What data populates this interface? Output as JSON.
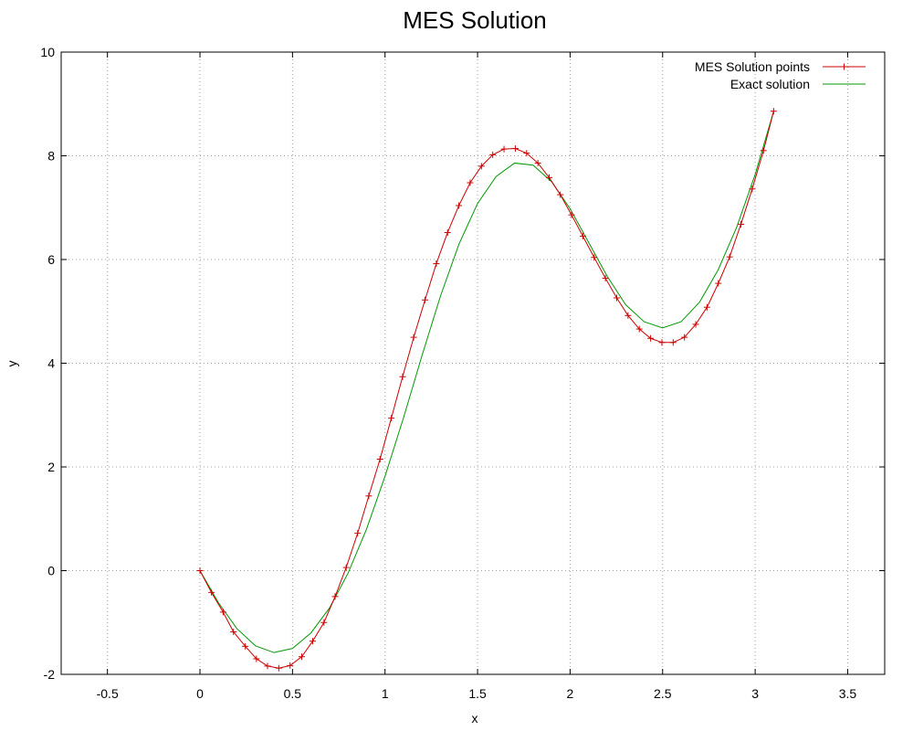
{
  "chart_data": {
    "type": "line",
    "title": "MES Solution",
    "xlabel": "x",
    "ylabel": "y",
    "xlim": [
      -0.75,
      3.7
    ],
    "ylim": [
      -2,
      10
    ],
    "xticks": [
      -0.5,
      0,
      0.5,
      1,
      1.5,
      2,
      2.5,
      3,
      3.5
    ],
    "xtick_labels": [
      "-0.5",
      "0",
      "0.5",
      "1",
      "1.5",
      "2",
      "2.5",
      "3",
      "3.5"
    ],
    "yticks": [
      -2,
      0,
      2,
      4,
      6,
      8,
      10
    ],
    "ytick_labels": [
      "-2",
      "0",
      "2",
      "4",
      "6",
      "8",
      "10"
    ],
    "grid": true,
    "legend_position": "top-right",
    "series": [
      {
        "name": "MES Solution points",
        "color": "#cc0000",
        "marker": "plus",
        "points": [
          [
            0.0,
            0.0
          ],
          [
            0.062,
            -0.42
          ],
          [
            0.125,
            -0.8
          ],
          [
            0.181,
            -1.18
          ],
          [
            0.245,
            -1.46
          ],
          [
            0.305,
            -1.7
          ],
          [
            0.365,
            -1.84
          ],
          [
            0.426,
            -1.88
          ],
          [
            0.487,
            -1.83
          ],
          [
            0.55,
            -1.66
          ],
          [
            0.609,
            -1.36
          ],
          [
            0.67,
            -1.0
          ],
          [
            0.73,
            -0.5
          ],
          [
            0.79,
            0.06
          ],
          [
            0.852,
            0.72
          ],
          [
            0.912,
            1.44
          ],
          [
            0.973,
            2.15
          ],
          [
            1.034,
            2.94
          ],
          [
            1.095,
            3.74
          ],
          [
            1.155,
            4.5
          ],
          [
            1.216,
            5.22
          ],
          [
            1.277,
            5.92
          ],
          [
            1.338,
            6.52
          ],
          [
            1.399,
            7.04
          ],
          [
            1.46,
            7.48
          ],
          [
            1.521,
            7.8
          ],
          [
            1.582,
            8.02
          ],
          [
            1.643,
            8.13
          ],
          [
            1.704,
            8.14
          ],
          [
            1.765,
            8.05
          ],
          [
            1.826,
            7.86
          ],
          [
            1.887,
            7.58
          ],
          [
            1.947,
            7.25
          ],
          [
            2.008,
            6.86
          ],
          [
            2.069,
            6.45
          ],
          [
            2.13,
            6.04
          ],
          [
            2.191,
            5.64
          ],
          [
            2.252,
            5.26
          ],
          [
            2.313,
            4.92
          ],
          [
            2.374,
            4.66
          ],
          [
            2.435,
            4.48
          ],
          [
            2.496,
            4.4
          ],
          [
            2.557,
            4.4
          ],
          [
            2.618,
            4.5
          ],
          [
            2.679,
            4.75
          ],
          [
            2.74,
            5.08
          ],
          [
            2.801,
            5.54
          ],
          [
            2.862,
            6.05
          ],
          [
            2.923,
            6.68
          ],
          [
            2.984,
            7.36
          ],
          [
            3.045,
            8.1
          ],
          [
            3.1,
            8.86
          ]
        ]
      },
      {
        "name": "Exact solution",
        "color": "#009900",
        "marker": "none",
        "points": [
          [
            0.0,
            0.0
          ],
          [
            0.1,
            -0.62
          ],
          [
            0.2,
            -1.12
          ],
          [
            0.3,
            -1.45
          ],
          [
            0.4,
            -1.58
          ],
          [
            0.5,
            -1.5
          ],
          [
            0.6,
            -1.2
          ],
          [
            0.7,
            -0.72
          ],
          [
            0.8,
            -0.05
          ],
          [
            0.9,
            0.8
          ],
          [
            1.0,
            1.82
          ],
          [
            1.1,
            2.95
          ],
          [
            1.2,
            4.15
          ],
          [
            1.3,
            5.3
          ],
          [
            1.4,
            6.3
          ],
          [
            1.5,
            7.08
          ],
          [
            1.6,
            7.6
          ],
          [
            1.7,
            7.86
          ],
          [
            1.8,
            7.82
          ],
          [
            1.9,
            7.5
          ],
          [
            2.0,
            6.98
          ],
          [
            2.1,
            6.33
          ],
          [
            2.2,
            5.68
          ],
          [
            2.3,
            5.13
          ],
          [
            2.4,
            4.8
          ],
          [
            2.5,
            4.68
          ],
          [
            2.6,
            4.8
          ],
          [
            2.7,
            5.18
          ],
          [
            2.8,
            5.8
          ],
          [
            2.9,
            6.62
          ],
          [
            3.0,
            7.64
          ],
          [
            3.1,
            8.86
          ]
        ]
      }
    ]
  }
}
